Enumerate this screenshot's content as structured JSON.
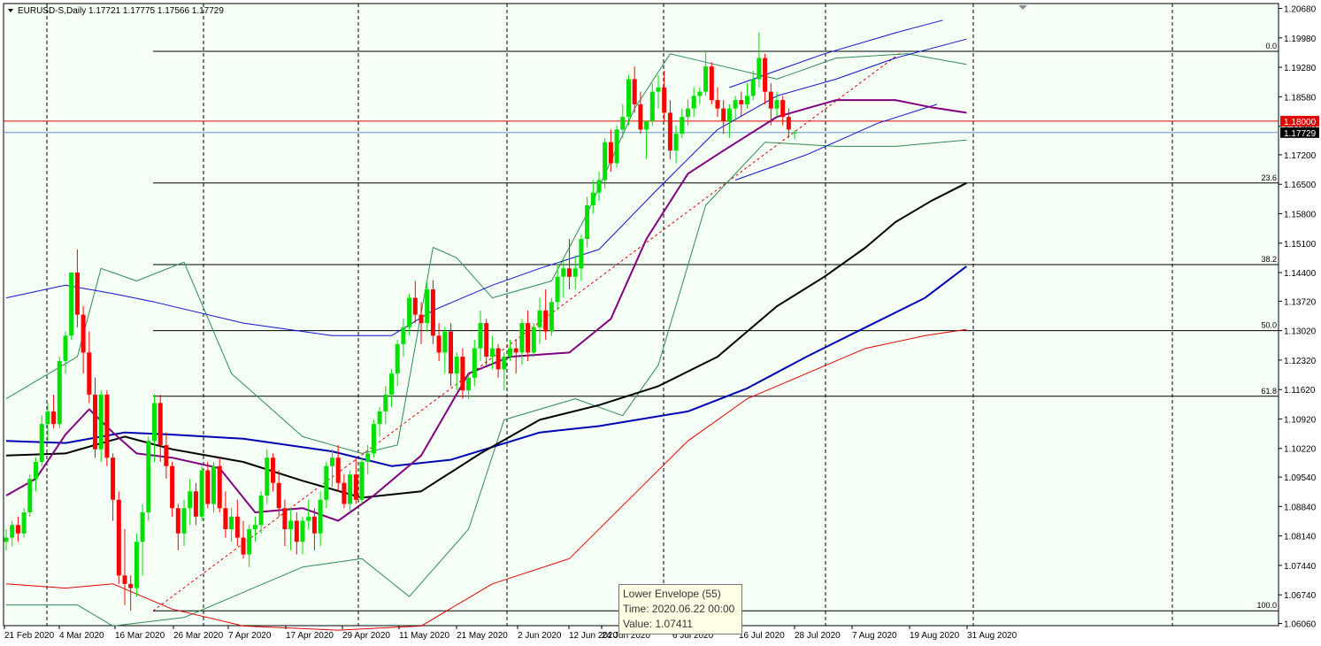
{
  "header": {
    "symbol": "EURUSD-S,Daily",
    "ohlc": "1.17721 1.17775 1.17566 1.17729"
  },
  "tooltip": {
    "line1": "Lower Envelope (55)",
    "line2": "Time: 2020.06.22 00:00",
    "line3": "Value: 1.07411"
  },
  "colors": {
    "background": "#f5fff5",
    "bull_candle": "#00e000",
    "bear_candle": "#ff0000",
    "ma_black": "#000000",
    "ma_blue": "#0000b4",
    "ma_purple": "#800080",
    "bollinger": "#2e8b57",
    "envelope_blue": "#1010d0",
    "envelope_red": "#e00000",
    "price_line": "#6699cc",
    "level_line": "#e00000"
  },
  "chart_data": {
    "type": "candlestick",
    "title": "EURUSD-S,Daily",
    "ylim": [
      1.0606,
      1.2068
    ],
    "y_ticks": [
      "1.20680",
      "1.19980",
      "1.19280",
      "1.18580",
      "1.17880",
      "1.17200",
      "1.16500",
      "1.15800",
      "1.15100",
      "1.14400",
      "1.13720",
      "1.13020",
      "1.12320",
      "1.11620",
      "1.10920",
      "1.10220",
      "1.09540",
      "1.08840",
      "1.08140",
      "1.07440",
      "1.06740",
      "1.06060"
    ],
    "x_labels": [
      "21 Feb 2020",
      "4 Mar 2020",
      "16 Mar 2020",
      "26 Mar 2020",
      "7 Apr 2020",
      "17 Apr 2020",
      "29 Apr 2020",
      "11 May 2020",
      "21 May 2020",
      "2 Jun 2020",
      "12 Jun 2020",
      "24 Jun 2020",
      "6 Jul 2020",
      "16 Jul 2020",
      "28 Jul 2020",
      "7 Aug 2020",
      "19 Aug 2020",
      "31 Aug 2020"
    ],
    "current_price": {
      "label": "1.17729",
      "value": 1.17729
    },
    "level_line": {
      "label": "1.18000",
      "value": 1.18
    },
    "fibonacci": {
      "levels": [
        {
          "label": "0.0",
          "value": 1.1966
        },
        {
          "label": "23.6",
          "value": 1.1653
        },
        {
          "label": "38.2",
          "value": 1.1459
        },
        {
          "label": "50.0",
          "value": 1.1302
        },
        {
          "label": "61.8",
          "value": 1.1146
        },
        {
          "label": "100.0",
          "value": 1.0636
        }
      ]
    },
    "candles": [
      [
        1.08,
        1.083,
        1.078,
        1.081
      ],
      [
        1.081,
        1.085,
        1.079,
        1.084
      ],
      [
        1.084,
        1.086,
        1.08,
        1.082
      ],
      [
        1.082,
        1.088,
        1.081,
        1.087
      ],
      [
        1.087,
        1.096,
        1.086,
        1.095
      ],
      [
        1.095,
        1.1,
        1.092,
        1.099
      ],
      [
        1.099,
        1.11,
        1.098,
        1.108
      ],
      [
        1.108,
        1.113,
        1.104,
        1.111
      ],
      [
        1.111,
        1.115,
        1.107,
        1.108
      ],
      [
        1.108,
        1.124,
        1.107,
        1.123
      ],
      [
        1.123,
        1.13,
        1.12,
        1.129
      ],
      [
        1.129,
        1.144,
        1.128,
        1.144
      ],
      [
        1.144,
        1.1495,
        1.131,
        1.134
      ],
      [
        1.134,
        1.136,
        1.12,
        1.125
      ],
      [
        1.125,
        1.13,
        1.113,
        1.115
      ],
      [
        1.115,
        1.119,
        1.1,
        1.102
      ],
      [
        1.102,
        1.116,
        1.099,
        1.115
      ],
      [
        1.115,
        1.116,
        1.098,
        1.1
      ],
      [
        1.1,
        1.101,
        1.085,
        1.09
      ],
      [
        1.09,
        1.092,
        1.07,
        1.072
      ],
      [
        1.072,
        1.083,
        1.065,
        1.07
      ],
      [
        1.07,
        1.072,
        1.0636,
        1.069
      ],
      [
        1.069,
        1.082,
        1.067,
        1.08
      ],
      [
        1.08,
        1.089,
        1.072,
        1.087
      ],
      [
        1.087,
        1.105,
        1.085,
        1.104
      ],
      [
        1.104,
        1.115,
        1.099,
        1.113
      ],
      [
        1.113,
        1.115,
        1.099,
        1.103
      ],
      [
        1.103,
        1.106,
        1.095,
        1.098
      ],
      [
        1.098,
        1.099,
        1.086,
        1.088
      ],
      [
        1.088,
        1.089,
        1.078,
        1.082
      ],
      [
        1.082,
        1.09,
        1.079,
        1.088
      ],
      [
        1.088,
        1.095,
        1.084,
        1.092
      ],
      [
        1.092,
        1.094,
        1.084,
        1.086
      ],
      [
        1.086,
        1.098,
        1.085,
        1.097
      ],
      [
        1.097,
        1.099,
        1.088,
        1.089
      ],
      [
        1.089,
        1.099,
        1.087,
        1.098
      ],
      [
        1.098,
        1.1,
        1.087,
        1.088
      ],
      [
        1.088,
        1.092,
        1.081,
        1.083
      ],
      [
        1.083,
        1.088,
        1.08,
        1.086
      ],
      [
        1.086,
        1.09,
        1.079,
        1.081
      ],
      [
        1.081,
        1.085,
        1.076,
        1.077
      ],
      [
        1.077,
        1.084,
        1.074,
        1.083
      ],
      [
        1.083,
        1.086,
        1.08,
        1.084
      ],
      [
        1.084,
        1.092,
        1.082,
        1.091
      ],
      [
        1.091,
        1.102,
        1.089,
        1.1
      ],
      [
        1.1,
        1.101,
        1.092,
        1.094
      ],
      [
        1.094,
        1.097,
        1.086,
        1.088
      ],
      [
        1.088,
        1.09,
        1.079,
        1.083
      ],
      [
        1.083,
        1.088,
        1.078,
        1.085
      ],
      [
        1.085,
        1.087,
        1.077,
        1.08
      ],
      [
        1.08,
        1.086,
        1.077,
        1.085
      ],
      [
        1.085,
        1.09,
        1.083,
        1.086
      ],
      [
        1.086,
        1.088,
        1.078,
        1.082
      ],
      [
        1.082,
        1.092,
        1.079,
        1.09
      ],
      [
        1.09,
        1.099,
        1.088,
        1.098
      ],
      [
        1.098,
        1.102,
        1.093,
        1.1
      ],
      [
        1.1,
        1.103,
        1.092,
        1.094
      ],
      [
        1.094,
        1.096,
        1.088,
        1.089
      ],
      [
        1.089,
        1.097,
        1.087,
        1.096
      ],
      [
        1.096,
        1.1,
        1.089,
        1.09
      ],
      [
        1.09,
        1.1,
        1.089,
        1.099
      ],
      [
        1.099,
        1.103,
        1.096,
        1.101
      ],
      [
        1.101,
        1.109,
        1.1,
        1.108
      ],
      [
        1.108,
        1.112,
        1.105,
        1.111
      ],
      [
        1.111,
        1.117,
        1.108,
        1.115
      ],
      [
        1.115,
        1.121,
        1.112,
        1.12
      ],
      [
        1.12,
        1.128,
        1.117,
        1.127
      ],
      [
        1.127,
        1.133,
        1.124,
        1.131
      ],
      [
        1.131,
        1.139,
        1.129,
        1.138
      ],
      [
        1.138,
        1.142,
        1.132,
        1.134
      ],
      [
        1.134,
        1.137,
        1.127,
        1.132
      ],
      [
        1.132,
        1.142,
        1.13,
        1.14
      ],
      [
        1.14,
        1.1422,
        1.127,
        1.129
      ],
      [
        1.129,
        1.132,
        1.123,
        1.125
      ],
      [
        1.125,
        1.131,
        1.12,
        1.13
      ],
      [
        1.13,
        1.132,
        1.117,
        1.12
      ],
      [
        1.12,
        1.125,
        1.116,
        1.124
      ],
      [
        1.124,
        1.126,
        1.114,
        1.116
      ],
      [
        1.116,
        1.12,
        1.114,
        1.119
      ],
      [
        1.119,
        1.128,
        1.117,
        1.126
      ],
      [
        1.126,
        1.135,
        1.123,
        1.132
      ],
      [
        1.132,
        1.133,
        1.122,
        1.124
      ],
      [
        1.124,
        1.129,
        1.121,
        1.126
      ],
      [
        1.126,
        1.127,
        1.119,
        1.121
      ],
      [
        1.121,
        1.125,
        1.116,
        1.124
      ],
      [
        1.124,
        1.128,
        1.123,
        1.126
      ],
      [
        1.126,
        1.128,
        1.12,
        1.125
      ],
      [
        1.125,
        1.133,
        1.122,
        1.132
      ],
      [
        1.132,
        1.135,
        1.123,
        1.125
      ],
      [
        1.125,
        1.132,
        1.124,
        1.131
      ],
      [
        1.131,
        1.138,
        1.127,
        1.135
      ],
      [
        1.135,
        1.14,
        1.128,
        1.13
      ],
      [
        1.13,
        1.138,
        1.129,
        1.137
      ],
      [
        1.137,
        1.146,
        1.135,
        1.143
      ],
      [
        1.143,
        1.147,
        1.138,
        1.145
      ],
      [
        1.145,
        1.152,
        1.14,
        1.143
      ],
      [
        1.143,
        1.148,
        1.14,
        1.145
      ],
      [
        1.145,
        1.153,
        1.142,
        1.152
      ],
      [
        1.152,
        1.162,
        1.15,
        1.16
      ],
      [
        1.16,
        1.166,
        1.158,
        1.163
      ],
      [
        1.163,
        1.168,
        1.161,
        1.166
      ],
      [
        1.166,
        1.176,
        1.164,
        1.175
      ],
      [
        1.175,
        1.178,
        1.168,
        1.17
      ],
      [
        1.17,
        1.179,
        1.169,
        1.178
      ],
      [
        1.178,
        1.184,
        1.176,
        1.181
      ],
      [
        1.181,
        1.191,
        1.179,
        1.19
      ],
      [
        1.19,
        1.193,
        1.182,
        1.184
      ],
      [
        1.184,
        1.187,
        1.177,
        1.178
      ],
      [
        1.178,
        1.18,
        1.171,
        1.18
      ],
      [
        1.18,
        1.189,
        1.179,
        1.187
      ],
      [
        1.187,
        1.191,
        1.183,
        1.188
      ],
      [
        1.188,
        1.192,
        1.18,
        1.182
      ],
      [
        1.182,
        1.185,
        1.171,
        1.173
      ],
      [
        1.173,
        1.179,
        1.17,
        1.177
      ],
      [
        1.177,
        1.183,
        1.176,
        1.181
      ],
      [
        1.181,
        1.185,
        1.179,
        1.183
      ],
      [
        1.183,
        1.188,
        1.181,
        1.186
      ],
      [
        1.186,
        1.188,
        1.184,
        1.187
      ],
      [
        1.187,
        1.1966,
        1.186,
        1.193
      ],
      [
        1.193,
        1.194,
        1.184,
        1.185
      ],
      [
        1.185,
        1.188,
        1.181,
        1.183
      ],
      [
        1.183,
        1.185,
        1.177,
        1.18
      ],
      [
        1.18,
        1.184,
        1.176,
        1.183
      ],
      [
        1.183,
        1.186,
        1.18,
        1.185
      ],
      [
        1.185,
        1.187,
        1.181,
        1.184
      ],
      [
        1.184,
        1.189,
        1.183,
        1.186
      ],
      [
        1.186,
        1.192,
        1.185,
        1.19
      ],
      [
        1.19,
        1.2011,
        1.188,
        1.195
      ],
      [
        1.195,
        1.196,
        1.184,
        1.187
      ],
      [
        1.187,
        1.189,
        1.179,
        1.183
      ],
      [
        1.183,
        1.187,
        1.181,
        1.185
      ],
      [
        1.185,
        1.186,
        1.179,
        1.181
      ],
      [
        1.181,
        1.183,
        1.176,
        1.178
      ],
      [
        1.1772,
        1.1778,
        1.1757,
        1.1773
      ]
    ],
    "indicators": {
      "ma_black": [
        [
          0,
          1.1005
        ],
        [
          10,
          1.101
        ],
        [
          20,
          1.105
        ],
        [
          28,
          1.102
        ],
        [
          40,
          1.099
        ],
        [
          50,
          1.0945
        ],
        [
          60,
          1.0905
        ],
        [
          70,
          1.092
        ],
        [
          80,
          1.101
        ],
        [
          90,
          1.109
        ],
        [
          100,
          1.1125
        ],
        [
          110,
          1.117
        ],
        [
          120,
          1.124
        ],
        [
          130,
          1.136
        ],
        [
          138,
          1.143
        ],
        [
          145,
          1.15
        ],
        [
          150,
          1.156
        ],
        [
          156,
          1.161
        ],
        [
          162,
          1.1653
        ]
      ],
      "ma_blue": [
        [
          0,
          1.104
        ],
        [
          10,
          1.1035
        ],
        [
          20,
          1.106
        ],
        [
          28,
          1.1055
        ],
        [
          40,
          1.1045
        ],
        [
          55,
          1.1015
        ],
        [
          65,
          1.098
        ],
        [
          75,
          1.0995
        ],
        [
          90,
          1.106
        ],
        [
          100,
          1.1075
        ],
        [
          115,
          1.111
        ],
        [
          125,
          1.1165
        ],
        [
          135,
          1.124
        ],
        [
          145,
          1.131
        ],
        [
          155,
          1.138
        ],
        [
          162,
          1.1455
        ]
      ],
      "ma_purple": [
        [
          0,
          1.091
        ],
        [
          5,
          1.095
        ],
        [
          10,
          1.1055
        ],
        [
          14,
          1.1115
        ],
        [
          18,
          1.106
        ],
        [
          22,
          1.101
        ],
        [
          28,
          1.1
        ],
        [
          36,
          1.0975
        ],
        [
          42,
          1.087
        ],
        [
          50,
          1.088
        ],
        [
          56,
          1.085
        ],
        [
          62,
          1.091
        ],
        [
          70,
          1.1005
        ],
        [
          78,
          1.12
        ],
        [
          85,
          1.124
        ],
        [
          95,
          1.125
        ],
        [
          102,
          1.133
        ],
        [
          108,
          1.152
        ],
        [
          115,
          1.1675
        ],
        [
          121,
          1.173
        ],
        [
          130,
          1.181
        ],
        [
          140,
          1.185
        ],
        [
          150,
          1.185
        ],
        [
          156,
          1.1833
        ],
        [
          162,
          1.182
        ]
      ],
      "bb_upper": [
        [
          0,
          1.114
        ],
        [
          12,
          1.124
        ],
        [
          16,
          1.145
        ],
        [
          22,
          1.142
        ],
        [
          30,
          1.1465
        ],
        [
          38,
          1.12
        ],
        [
          50,
          1.105
        ],
        [
          60,
          1.101
        ],
        [
          66,
          1.103
        ],
        [
          72,
          1.15
        ],
        [
          76,
          1.1475
        ],
        [
          82,
          1.138
        ],
        [
          92,
          1.142
        ],
        [
          98,
          1.158
        ],
        [
          106,
          1.183
        ],
        [
          112,
          1.196
        ],
        [
          118,
          1.194
        ],
        [
          130,
          1.19
        ],
        [
          140,
          1.195
        ],
        [
          152,
          1.196
        ],
        [
          162,
          1.1935
        ]
      ],
      "bb_lower": [
        [
          0,
          1.065
        ],
        [
          12,
          1.065
        ],
        [
          18,
          1.06
        ],
        [
          30,
          1.062
        ],
        [
          40,
          1.068
        ],
        [
          50,
          1.074
        ],
        [
          60,
          1.076
        ],
        [
          68,
          1.067
        ],
        [
          78,
          1.083
        ],
        [
          84,
          1.109
        ],
        [
          96,
          1.114
        ],
        [
          104,
          1.11
        ],
        [
          110,
          1.122
        ],
        [
          118,
          1.16
        ],
        [
          128,
          1.175
        ],
        [
          140,
          1.174
        ],
        [
          150,
          1.174
        ],
        [
          162,
          1.1755
        ]
      ],
      "env_blue": [
        [
          0,
          1.138
        ],
        [
          10,
          1.141
        ],
        [
          18,
          1.139
        ],
        [
          25,
          1.137
        ],
        [
          40,
          1.132
        ],
        [
          55,
          1.129
        ],
        [
          65,
          1.129
        ],
        [
          72,
          1.135
        ],
        [
          82,
          1.141
        ],
        [
          90,
          1.145
        ],
        [
          100,
          1.1495
        ],
        [
          110,
          1.164
        ],
        [
          120,
          1.178
        ],
        [
          130,
          1.186
        ],
        [
          140,
          1.19
        ],
        [
          150,
          1.195
        ],
        [
          162,
          1.1995
        ]
      ],
      "env_red": [
        [
          0,
          1.07
        ],
        [
          10,
          1.069
        ],
        [
          18,
          1.07
        ],
        [
          28,
          1.064
        ],
        [
          40,
          1.06
        ],
        [
          56,
          1.059
        ],
        [
          70,
          1.06
        ],
        [
          82,
          1.07
        ],
        [
          95,
          1.076
        ],
        [
          105,
          1.09
        ],
        [
          115,
          1.104
        ],
        [
          125,
          1.114
        ],
        [
          135,
          1.12
        ],
        [
          145,
          1.126
        ],
        [
          155,
          1.129
        ],
        [
          162,
          1.1305
        ]
      ],
      "channel_top": [
        [
          122,
          1.188
        ],
        [
          138,
          1.196
        ],
        [
          150,
          1.201
        ],
        [
          158,
          1.204
        ]
      ],
      "channel_bottom": [
        [
          123,
          1.166
        ],
        [
          135,
          1.172
        ],
        [
          147,
          1.1795
        ],
        [
          157,
          1.184
        ]
      ]
    }
  }
}
